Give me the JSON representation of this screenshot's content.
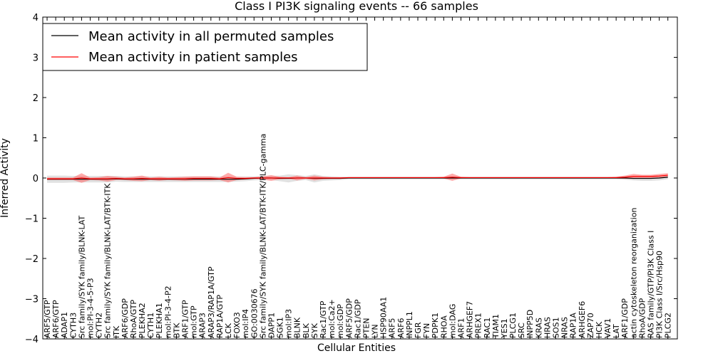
{
  "chart_data": {
    "type": "line",
    "title": "Class I PI3K signaling events -- 66 samples",
    "xlabel": "Cellular Entities",
    "ylabel": "Inferred Activity",
    "ylim": [
      -4,
      4
    ],
    "yticks": [
      4,
      3,
      2,
      1,
      0,
      -1,
      -2,
      -3,
      -4
    ],
    "ytick_labels": [
      "4",
      "3",
      "2",
      "1",
      "0",
      "−1",
      "−2",
      "−3",
      "−4"
    ],
    "grid": false,
    "legend_position": "top-left",
    "categories": [
      "ARF5/GTP",
      "ARF6/GTP",
      "ADAP1",
      "CYTH3",
      "Src family/SYK family/BLNK-LAT",
      "mol:PI-3-4-5-P3",
      "CYTH2",
      "Src family/SYK family/BLNK-LAT/BTK-ITK",
      "ITK",
      "ARF6/GDP",
      "RhoA/GTP",
      "PLEKHA2",
      "CYTH1",
      "PLEKHA1",
      "mol:PI-3-4-P2",
      "BTK",
      "ARF1/GTP",
      "mol:GTP",
      "ARAP3",
      "ARAP3/RAP1A/GTP",
      "RAP1A/GTP",
      "LCK",
      "FOXO3",
      "mol:IP4",
      "GO:0030676",
      "Src family/SYK family/BLNK-LAT/BTK-ITK/PLC-gamma",
      "DAPP1",
      "SGK1",
      "mol:IP3",
      "BLNK",
      "BLK",
      "SYK",
      "Rac1/GTP",
      "mol:Ca2+",
      "mol:GDP",
      "ARF5/GDP",
      "Rac1/GDP",
      "PTEN",
      "LYN",
      "HSP90AA1",
      "ARF5",
      "ARF6",
      "INPPL1",
      "FGR",
      "FYN",
      "PDPK1",
      "RHOA",
      "mol:DAG",
      "ARF1",
      "ARHGEF7",
      "PREX1",
      "RAC1",
      "TIAM1",
      "YES1",
      "PLCG1",
      "SRC",
      "INPP5D",
      "KRAS",
      "HRAS",
      "SOS1",
      "NRAS",
      "RAP1A",
      "ARHGEF6",
      "ZAP70",
      "HCK",
      "VAV1",
      "LAT",
      "ARF1/GDP",
      "actin cytoskeleton reorganization",
      "RhoA/GDP",
      "RAS family/GTP/PI3K Class I",
      "PI3K Class I/Src/Hsp90",
      "PLCG2"
    ],
    "series": [
      {
        "name": "Mean activity in all permuted samples",
        "color": "#000000",
        "values": [
          -0.03,
          -0.03,
          -0.03,
          -0.03,
          -0.03,
          -0.03,
          -0.03,
          -0.03,
          -0.02,
          -0.03,
          -0.03,
          -0.03,
          -0.03,
          -0.03,
          -0.03,
          -0.03,
          -0.03,
          -0.03,
          -0.03,
          -0.03,
          -0.03,
          -0.03,
          -0.03,
          -0.02,
          -0.01,
          0.0,
          0.0,
          -0.01,
          -0.01,
          0.0,
          0.0,
          -0.01,
          -0.01,
          -0.01,
          -0.01,
          0.0,
          0.0,
          0.0,
          0.0,
          0.0,
          0.0,
          0.0,
          0.0,
          0.0,
          0.0,
          0.0,
          0.0,
          0.0,
          0.0,
          0.0,
          0.0,
          0.0,
          0.0,
          0.0,
          0.0,
          0.0,
          0.0,
          0.0,
          0.0,
          0.0,
          0.0,
          0.0,
          0.0,
          0.0,
          0.0,
          0.0,
          0.0,
          0.0,
          -0.01,
          -0.01,
          -0.01,
          0.0,
          0.02
        ]
      },
      {
        "name": "Mean activity in patient samples",
        "color": "#ff0000",
        "values": [
          -0.02,
          -0.02,
          -0.02,
          -0.02,
          0.0,
          -0.02,
          -0.02,
          -0.02,
          -0.01,
          -0.02,
          -0.02,
          -0.01,
          -0.02,
          -0.02,
          -0.02,
          -0.02,
          -0.02,
          -0.01,
          -0.01,
          -0.01,
          -0.02,
          0.01,
          -0.01,
          -0.01,
          0.0,
          0.0,
          0.0,
          0.0,
          0.0,
          0.0,
          0.0,
          0.0,
          0.0,
          0.0,
          0.0,
          0.01,
          0.01,
          0.01,
          0.01,
          0.01,
          0.01,
          0.01,
          0.01,
          0.01,
          0.01,
          0.01,
          0.01,
          0.02,
          0.01,
          0.01,
          0.01,
          0.01,
          0.01,
          0.01,
          0.01,
          0.01,
          0.01,
          0.01,
          0.01,
          0.01,
          0.01,
          0.01,
          0.01,
          0.01,
          0.01,
          0.01,
          0.01,
          0.02,
          0.04,
          0.04,
          0.04,
          0.05,
          0.07
        ]
      }
    ],
    "band_permuted": {
      "name": "permuted samples spread",
      "color": "#c8c8c8",
      "spread": [
        0.09,
        0.09,
        0.09,
        0.08,
        0.08,
        0.08,
        0.08,
        0.08,
        0.07,
        0.07,
        0.07,
        0.07,
        0.07,
        0.07,
        0.07,
        0.07,
        0.07,
        0.07,
        0.07,
        0.07,
        0.07,
        0.07,
        0.06,
        0.06,
        0.05,
        0.05,
        0.05,
        0.07,
        0.1,
        0.07,
        0.05,
        0.1,
        0.06,
        0.05,
        0.04,
        0.03,
        0.03,
        0.03,
        0.03,
        0.03,
        0.03,
        0.03,
        0.03,
        0.03,
        0.03,
        0.03,
        0.03,
        0.03,
        0.03,
        0.03,
        0.03,
        0.03,
        0.03,
        0.03,
        0.03,
        0.03,
        0.03,
        0.03,
        0.03,
        0.03,
        0.03,
        0.03,
        0.03,
        0.03,
        0.03,
        0.03,
        0.03,
        0.04,
        0.05,
        0.06,
        0.06,
        0.06,
        0.05
      ]
    },
    "band_patient": {
      "name": "patient samples spread",
      "color": "#ff6666",
      "spread": [
        0.03,
        0.03,
        0.03,
        0.03,
        0.12,
        0.03,
        0.04,
        0.07,
        0.04,
        0.03,
        0.05,
        0.07,
        0.03,
        0.05,
        0.03,
        0.04,
        0.05,
        0.05,
        0.05,
        0.05,
        0.03,
        0.12,
        0.04,
        0.03,
        0.02,
        0.04,
        0.07,
        0.03,
        0.02,
        0.06,
        0.02,
        0.06,
        0.03,
        0.02,
        0.02,
        0.01,
        0.01,
        0.01,
        0.01,
        0.01,
        0.01,
        0.01,
        0.01,
        0.01,
        0.01,
        0.01,
        0.02,
        0.09,
        0.02,
        0.01,
        0.01,
        0.01,
        0.01,
        0.01,
        0.01,
        0.01,
        0.01,
        0.01,
        0.01,
        0.01,
        0.01,
        0.01,
        0.01,
        0.01,
        0.01,
        0.01,
        0.02,
        0.04,
        0.06,
        0.04,
        0.04,
        0.05,
        0.05
      ]
    }
  }
}
